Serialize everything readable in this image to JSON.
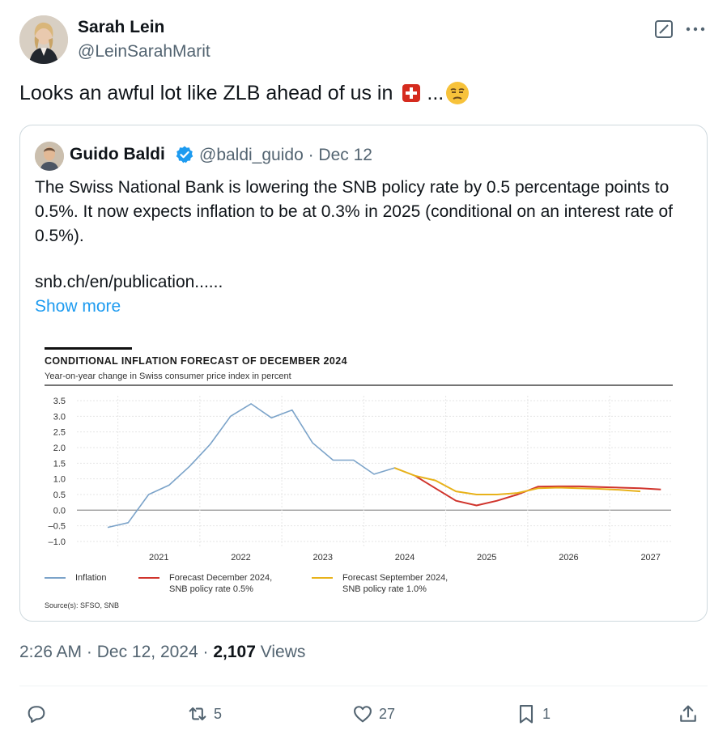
{
  "author": {
    "name": "Sarah Lein",
    "handle": "@LeinSarahMarit",
    "avatar": "avatar-photo"
  },
  "tweet": {
    "text": "Looks an awful lot like ZLB ahead of us in",
    "flag": "swiss-flag-emoji",
    "ellipsis": "...",
    "emoji": "unamused-face-emoji"
  },
  "quote": {
    "name": "Guido Baldi",
    "verified": true,
    "handle": "@baldi_guido",
    "date": "Dec 12",
    "text": "The Swiss National Bank is lowering the SNB policy rate by 0.5 percentage points to 0.5%. It now expects inflation to be at 0.3% in 2025 (conditional on an interest rate of 0.5%).",
    "link": "snb.ch/en/publication......",
    "show_more": "Show more"
  },
  "chart_data": {
    "type": "line",
    "title": "CONDITIONAL INFLATION FORECAST OF DECEMBER 2024",
    "subtitle": "Year-on-year change in Swiss consumer price index in percent",
    "source": "Source(s): SFSO, SNB",
    "x_ticks": [
      "2021",
      "2022",
      "2023",
      "2024",
      "2025",
      "2026",
      "2027"
    ],
    "y_ticks": [
      "3.5",
      "3.0",
      "2.5",
      "2.0",
      "1.5",
      "1.0",
      "0.5",
      "0.0",
      "–0.5",
      "–1.0"
    ],
    "ylim": [
      -1.0,
      3.5
    ],
    "grid": true,
    "colors": {
      "inflation": "#7ba3c9",
      "forecast_dec": "#d0342c",
      "forecast_sep": "#e8b21a"
    },
    "series": [
      {
        "name": "Inflation",
        "key": "inflation",
        "points": [
          [
            "2020-Q4",
            -0.55
          ],
          [
            "2021-Q1",
            -0.4
          ],
          [
            "2021-Q2",
            0.5
          ],
          [
            "2021-Q3",
            0.8
          ],
          [
            "2021-Q4",
            1.4
          ],
          [
            "2022-Q1",
            2.1
          ],
          [
            "2022-Q2",
            3.0
          ],
          [
            "2022-Q3",
            3.4
          ],
          [
            "2022-Q4",
            2.95
          ],
          [
            "2023-Q1",
            3.2
          ],
          [
            "2023-Q2",
            2.15
          ],
          [
            "2023-Q3",
            1.6
          ],
          [
            "2023-Q4",
            1.6
          ],
          [
            "2024-Q1",
            1.15
          ],
          [
            "2024-Q2",
            1.35
          ],
          [
            "2024-Q3",
            1.1
          ]
        ]
      },
      {
        "name": "Forecast December 2024, SNB policy rate 0.5%",
        "key": "forecast_dec",
        "points": [
          [
            "2024-Q3",
            1.1
          ],
          [
            "2024-Q4",
            0.7
          ],
          [
            "2025-Q1",
            0.3
          ],
          [
            "2025-Q2",
            0.15
          ],
          [
            "2025-Q3",
            0.3
          ],
          [
            "2025-Q4",
            0.5
          ],
          [
            "2026-Q1",
            0.75
          ],
          [
            "2026-Q2",
            0.76
          ],
          [
            "2026-Q3",
            0.76
          ],
          [
            "2026-Q4",
            0.74
          ],
          [
            "2027-Q1",
            0.72
          ],
          [
            "2027-Q2",
            0.7
          ],
          [
            "2027-Q3",
            0.66
          ]
        ]
      },
      {
        "name": "Forecast September 2024, SNB policy rate 1.0%",
        "key": "forecast_sep",
        "points": [
          [
            "2024-Q2",
            1.35
          ],
          [
            "2024-Q3",
            1.1
          ],
          [
            "2024-Q4",
            0.95
          ],
          [
            "2025-Q1",
            0.6
          ],
          [
            "2025-Q2",
            0.5
          ],
          [
            "2025-Q3",
            0.5
          ],
          [
            "2025-Q4",
            0.55
          ],
          [
            "2026-Q1",
            0.7
          ],
          [
            "2026-Q2",
            0.72
          ],
          [
            "2026-Q3",
            0.7
          ],
          [
            "2026-Q4",
            0.68
          ],
          [
            "2027-Q1",
            0.65
          ],
          [
            "2027-Q2",
            0.6
          ]
        ]
      }
    ],
    "legend": [
      {
        "label": "Inflation",
        "key": "inflation"
      },
      {
        "label": "Forecast December 2024, SNB policy rate 0.5%",
        "line1": "Forecast December 2024,",
        "line2": "SNB policy rate 0.5%",
        "key": "forecast_dec"
      },
      {
        "label": "Forecast September 2024, SNB policy rate 1.0%",
        "line1": "Forecast September 2024,",
        "line2": "SNB policy rate 1.0%",
        "key": "forecast_sep"
      }
    ]
  },
  "meta": {
    "time": "2:26 AM",
    "date": "Dec 12, 2024",
    "views_count": "2,107",
    "views_label": "Views"
  },
  "actions": {
    "replies": "",
    "reposts": "5",
    "likes": "27",
    "bookmarks": "1"
  },
  "icons": {
    "grok": "grok-icon",
    "more": "more-icon",
    "reply": "reply-icon",
    "repost": "repost-icon",
    "like": "heart-icon",
    "bookmark": "bookmark-icon",
    "share": "share-icon",
    "verified": "verified-badge-icon"
  }
}
